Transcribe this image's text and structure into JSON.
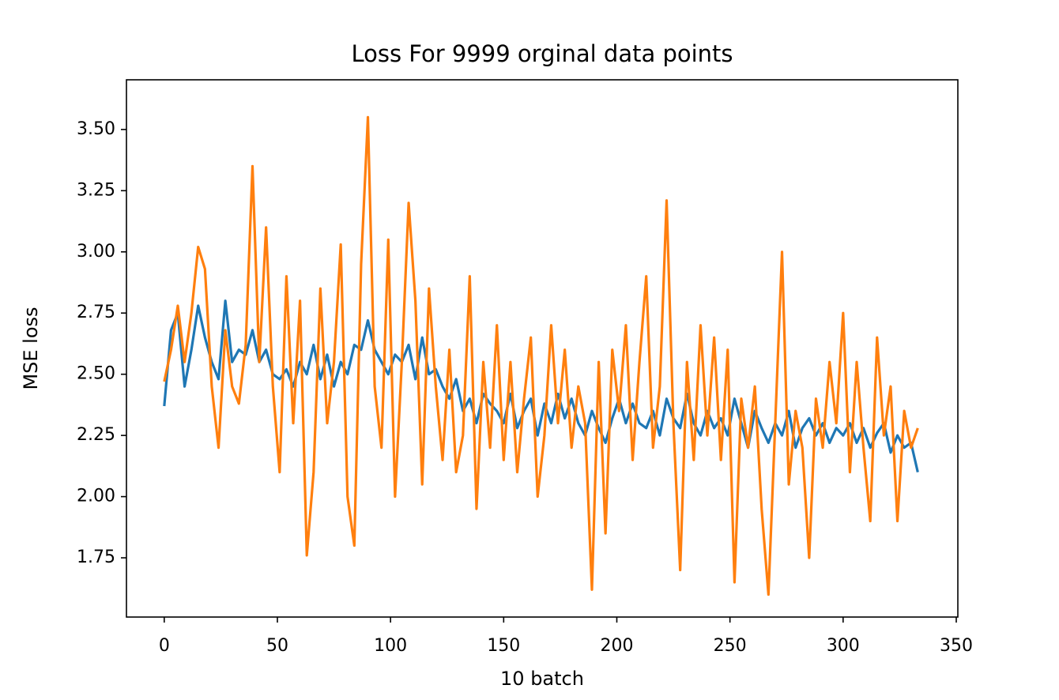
{
  "chart_data": {
    "type": "line",
    "title": "Loss For 9999 orginal data points",
    "x_label": "10 batch",
    "y_label": "MSE loss",
    "x": [
      0,
      3,
      6,
      9,
      12,
      15,
      18,
      21,
      24,
      27,
      30,
      33,
      36,
      39,
      42,
      45,
      48,
      51,
      54,
      57,
      60,
      63,
      66,
      69,
      72,
      75,
      78,
      81,
      84,
      87,
      90,
      93,
      96,
      99,
      102,
      105,
      108,
      111,
      114,
      117,
      120,
      123,
      126,
      129,
      132,
      135,
      138,
      141,
      144,
      147,
      150,
      153,
      156,
      159,
      162,
      165,
      168,
      171,
      174,
      177,
      180,
      183,
      186,
      189,
      192,
      195,
      198,
      201,
      204,
      207,
      210,
      213,
      216,
      219,
      222,
      225,
      228,
      231,
      234,
      237,
      240,
      243,
      246,
      249,
      252,
      255,
      258,
      261,
      264,
      267,
      270,
      273,
      276,
      279,
      282,
      285,
      288,
      291,
      294,
      297,
      300,
      303,
      306,
      309,
      312,
      315,
      318,
      321,
      324,
      327,
      330,
      333
    ],
    "series": [
      {
        "color": "#1f77b4",
        "values": [
          2.37,
          2.68,
          2.75,
          2.45,
          2.6,
          2.78,
          2.65,
          2.55,
          2.48,
          2.8,
          2.55,
          2.6,
          2.58,
          2.68,
          2.55,
          2.6,
          2.5,
          2.48,
          2.52,
          2.45,
          2.55,
          2.5,
          2.62,
          2.48,
          2.58,
          2.45,
          2.55,
          2.5,
          2.62,
          2.6,
          2.72,
          2.6,
          2.55,
          2.5,
          2.58,
          2.55,
          2.62,
          2.48,
          2.65,
          2.5,
          2.52,
          2.45,
          2.4,
          2.48,
          2.35,
          2.4,
          2.3,
          2.42,
          2.38,
          2.35,
          2.3,
          2.42,
          2.28,
          2.35,
          2.4,
          2.25,
          2.38,
          2.3,
          2.42,
          2.32,
          2.4,
          2.3,
          2.25,
          2.35,
          2.28,
          2.22,
          2.32,
          2.4,
          2.3,
          2.38,
          2.3,
          2.28,
          2.35,
          2.25,
          2.4,
          2.32,
          2.28,
          2.42,
          2.3,
          2.25,
          2.35,
          2.28,
          2.32,
          2.25,
          2.4,
          2.3,
          2.2,
          2.35,
          2.28,
          2.22,
          2.3,
          2.25,
          2.35,
          2.2,
          2.28,
          2.32,
          2.25,
          2.3,
          2.22,
          2.28,
          2.25,
          2.3,
          2.22,
          2.28,
          2.2,
          2.26,
          2.3,
          2.18,
          2.25,
          2.2,
          2.22,
          2.1
        ]
      },
      {
        "color": "#ff7f0e",
        "values": [
          2.47,
          2.6,
          2.78,
          2.55,
          2.75,
          3.02,
          2.93,
          2.45,
          2.2,
          2.68,
          2.45,
          2.38,
          2.62,
          3.35,
          2.55,
          3.1,
          2.45,
          2.1,
          2.9,
          2.3,
          2.8,
          1.76,
          2.1,
          2.85,
          2.3,
          2.55,
          3.03,
          2.0,
          1.8,
          2.95,
          3.55,
          2.45,
          2.2,
          3.05,
          2.0,
          2.55,
          3.2,
          2.8,
          2.05,
          2.85,
          2.45,
          2.15,
          2.6,
          2.1,
          2.25,
          2.9,
          1.95,
          2.55,
          2.2,
          2.7,
          2.15,
          2.55,
          2.1,
          2.4,
          2.65,
          2.0,
          2.25,
          2.7,
          2.3,
          2.6,
          2.2,
          2.45,
          2.3,
          1.62,
          2.55,
          1.85,
          2.6,
          2.35,
          2.7,
          2.15,
          2.55,
          2.9,
          2.2,
          2.45,
          3.21,
          2.3,
          1.7,
          2.55,
          2.15,
          2.7,
          2.25,
          2.65,
          2.15,
          2.6,
          1.65,
          2.4,
          2.2,
          2.45,
          1.95,
          1.6,
          2.3,
          3.0,
          2.05,
          2.35,
          2.2,
          1.75,
          2.4,
          2.2,
          2.55,
          2.3,
          2.75,
          2.1,
          2.55,
          2.2,
          1.9,
          2.65,
          2.25,
          2.45,
          1.9,
          2.35,
          2.2,
          2.28
        ]
      }
    ],
    "xlim": [
      -16.7,
      350.7
    ],
    "ylim": [
      1.508,
      3.703
    ],
    "xticks": [
      0,
      50,
      100,
      150,
      200,
      250,
      300,
      350
    ],
    "yticks": [
      1.75,
      {
        "value": 2.0,
        "label": "2.00"
      },
      2.25,
      {
        "value": 2.5,
        "label": "2.50"
      },
      2.75,
      {
        "value": 3.0,
        "label": "3.00"
      },
      3.25,
      {
        "value": 3.5,
        "label": "3.50"
      }
    ]
  }
}
